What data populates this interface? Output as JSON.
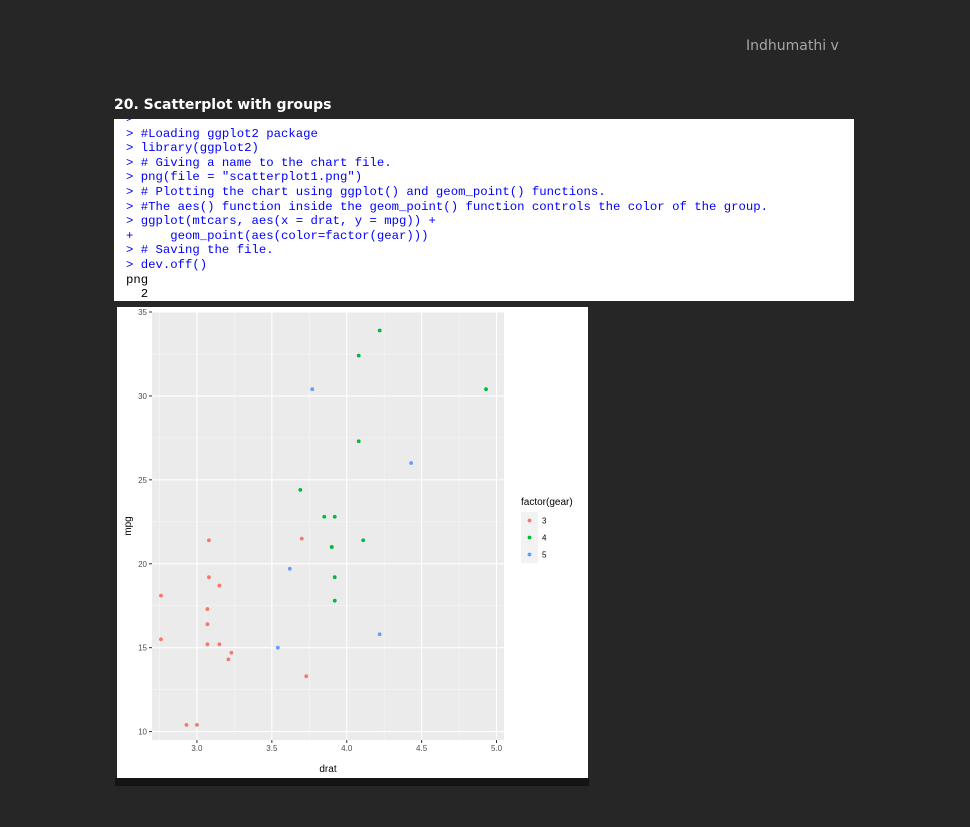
{
  "header": {
    "author": "Indhumathi v"
  },
  "section": {
    "title": "20. Scatterplot with groups"
  },
  "console": {
    "lines": [
      {
        "kind": "in",
        "text": ">"
      },
      {
        "kind": "in",
        "text": "> #Loading ggplot2 package"
      },
      {
        "kind": "in",
        "text": "> library(ggplot2)"
      },
      {
        "kind": "in",
        "text": "> # Giving a name to the chart file."
      },
      {
        "kind": "in",
        "text": "> png(file = \"scatterplot1.png\")"
      },
      {
        "kind": "in",
        "text": "> # Plotting the chart using ggplot() and geom_point() functions."
      },
      {
        "kind": "in",
        "text": "> #The aes() function inside the geom_point() function controls the color of the group."
      },
      {
        "kind": "in",
        "text": "> ggplot(mtcars, aes(x = drat, y = mpg)) +"
      },
      {
        "kind": "in",
        "text": "+     geom_point(aes(color=factor(gear)))"
      },
      {
        "kind": "in",
        "text": "> # Saving the file."
      },
      {
        "kind": "in",
        "text": "> dev.off()"
      },
      {
        "kind": "out",
        "text": "png"
      },
      {
        "kind": "out",
        "text": "  2"
      }
    ]
  },
  "chart_data": {
    "type": "scatter",
    "title": "",
    "xlabel": "drat",
    "ylabel": "mpg",
    "xlim": [
      2.7,
      5.05
    ],
    "ylim": [
      9.5,
      35
    ],
    "xticks": [
      3.0,
      3.5,
      4.0,
      4.5,
      5.0
    ],
    "xtick_labels": [
      "3.0",
      "3.5",
      "4.0",
      "4.5",
      "5.0"
    ],
    "yticks": [
      10,
      15,
      20,
      25,
      30,
      35
    ],
    "ytick_labels": [
      "10",
      "15",
      "20",
      "25",
      "30",
      "35"
    ],
    "grid": true,
    "legend": {
      "title": "factor(gear)",
      "position": "right"
    },
    "series": [
      {
        "name": "3",
        "color": "#F8766D",
        "points": [
          [
            3.08,
            21.4
          ],
          [
            3.15,
            18.7
          ],
          [
            2.76,
            18.1
          ],
          [
            3.21,
            14.3
          ],
          [
            3.07,
            16.4
          ],
          [
            3.07,
            17.3
          ],
          [
            3.07,
            15.2
          ],
          [
            2.93,
            10.4
          ],
          [
            3.0,
            10.4
          ],
          [
            3.23,
            14.7
          ],
          [
            2.76,
            15.5
          ],
          [
            3.15,
            15.2
          ],
          [
            3.73,
            13.3
          ],
          [
            3.08,
            19.2
          ],
          [
            3.7,
            21.5
          ]
        ]
      },
      {
        "name": "4",
        "color": "#00BA38",
        "points": [
          [
            3.9,
            21.0
          ],
          [
            3.9,
            21.0
          ],
          [
            3.85,
            22.8
          ],
          [
            3.69,
            24.4
          ],
          [
            3.92,
            22.8
          ],
          [
            3.92,
            19.2
          ],
          [
            3.92,
            17.8
          ],
          [
            4.08,
            32.4
          ],
          [
            4.93,
            30.4
          ],
          [
            4.22,
            33.9
          ],
          [
            4.08,
            27.3
          ],
          [
            4.11,
            21.4
          ]
        ]
      },
      {
        "name": "5",
        "color": "#619CFF",
        "points": [
          [
            4.43,
            26.0
          ],
          [
            3.77,
            30.4
          ],
          [
            4.22,
            15.8
          ],
          [
            3.62,
            19.7
          ],
          [
            3.54,
            15.0
          ]
        ]
      }
    ]
  }
}
